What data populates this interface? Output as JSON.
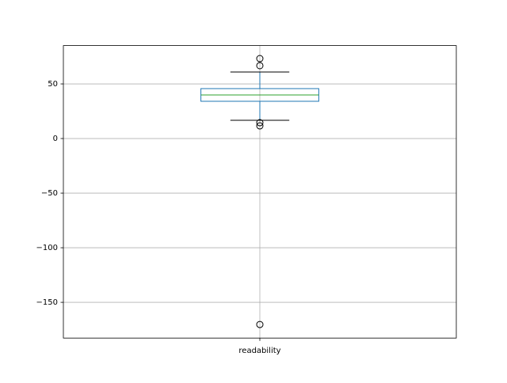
{
  "chart_data": {
    "type": "box",
    "categories": [
      "readability"
    ],
    "boxes": [
      {
        "whislo": 16.7,
        "q1": 34.1,
        "med": 39.9,
        "q3": 45.7,
        "whishi": 60.9,
        "fliers": [
          73.2,
          66.7,
          14.5,
          11.6,
          -170.3
        ]
      }
    ],
    "box_color": "#1f77b4",
    "median_color": "#2ca02c",
    "cap_color": "#000000",
    "ylim": [
      -182.7,
      85.1
    ],
    "yticks": [
      {
        "value": -150,
        "label": "−150"
      },
      {
        "value": -100,
        "label": "−100"
      },
      {
        "value": -50,
        "label": "−50"
      },
      0,
      50
    ],
    "grid": true
  }
}
